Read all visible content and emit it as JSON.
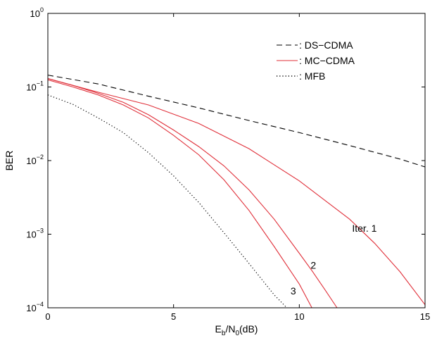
{
  "chart_data": {
    "type": "line",
    "title": "",
    "xlabel": "E_b/N_0(dB)",
    "xlabel_parts": {
      "main": "E",
      "sub1": "b",
      "mid": "/N",
      "sub2": "0",
      "tail": "(dB)"
    },
    "ylabel": "BER",
    "xlim": [
      0,
      15
    ],
    "ylim": [
      0.0001,
      1
    ],
    "yscale": "log",
    "grid": false,
    "xticks": [
      {
        "value": 0,
        "label": "0"
      },
      {
        "value": 5,
        "label": "5"
      },
      {
        "value": 10,
        "label": "10"
      },
      {
        "value": 15,
        "label": "15"
      }
    ],
    "yticks": [
      {
        "value": 1,
        "base": "10",
        "exp": "0"
      },
      {
        "value": 0.1,
        "base": "10",
        "exp": "−1"
      },
      {
        "value": 0.01,
        "base": "10",
        "exp": "−2"
      },
      {
        "value": 0.001,
        "base": "10",
        "exp": "−3"
      },
      {
        "value": 0.0001,
        "base": "10",
        "exp": "−4"
      }
    ],
    "legend": {
      "placement": "top-right",
      "entries": [
        {
          "label": ": DS−CDMA",
          "style": "dashed",
          "color": "#000000"
        },
        {
          "label": ": MC−CDMA",
          "style": "solid",
          "color": "#e0303a"
        },
        {
          "label": ": MFB",
          "style": "dotted",
          "color": "#000000"
        }
      ]
    },
    "series": [
      {
        "style": "dashed",
        "color": "#000000",
        "x": [
          0,
          2,
          4,
          6,
          8,
          10,
          12,
          14,
          15
        ],
        "y": [
          0.145,
          0.11,
          0.075,
          0.052,
          0.035,
          0.024,
          0.016,
          0.0105,
          0.0082
        ]
      },
      {
        "style": "solid",
        "color": "#e0303a",
        "label": "Iter. 1",
        "x": [
          0,
          2,
          4,
          6,
          8,
          10,
          12,
          13,
          14,
          15
        ],
        "y": [
          0.13,
          0.085,
          0.057,
          0.032,
          0.0145,
          0.0053,
          0.0016,
          0.00075,
          0.00031,
          0.00011
        ]
      },
      {
        "style": "solid",
        "color": "#e0303a",
        "label": "2",
        "x": [
          0,
          1,
          2,
          3,
          4,
          5,
          6,
          7,
          8,
          9,
          10,
          10.5,
          11,
          11.5
        ],
        "y": [
          0.13,
          0.105,
          0.082,
          0.062,
          0.042,
          0.026,
          0.0155,
          0.0085,
          0.004,
          0.0016,
          0.00055,
          0.00032,
          0.00018,
          0.0001
        ]
      },
      {
        "style": "solid",
        "color": "#e0303a",
        "label": "3",
        "x": [
          0,
          1,
          2,
          3,
          4,
          5,
          6,
          7,
          8,
          9,
          10,
          10.5
        ],
        "y": [
          0.125,
          0.1,
          0.078,
          0.057,
          0.038,
          0.022,
          0.012,
          0.0055,
          0.0021,
          0.00068,
          0.00021,
          0.0001
        ]
      },
      {
        "style": "dotted",
        "color": "#000000",
        "x": [
          0,
          1,
          2,
          3,
          4,
          5,
          6,
          7,
          8,
          9,
          9.5
        ],
        "y": [
          0.078,
          0.058,
          0.038,
          0.024,
          0.0128,
          0.0062,
          0.0027,
          0.00105,
          0.0004,
          0.00015,
          0.0001
        ]
      }
    ],
    "annotations": [
      {
        "text": "Iter. 1",
        "x": 12.1,
        "y": 0.0012
      },
      {
        "text": "2",
        "x": 10.45,
        "y": 0.00038
      },
      {
        "text": "3",
        "x": 9.65,
        "y": 0.00017
      }
    ]
  }
}
